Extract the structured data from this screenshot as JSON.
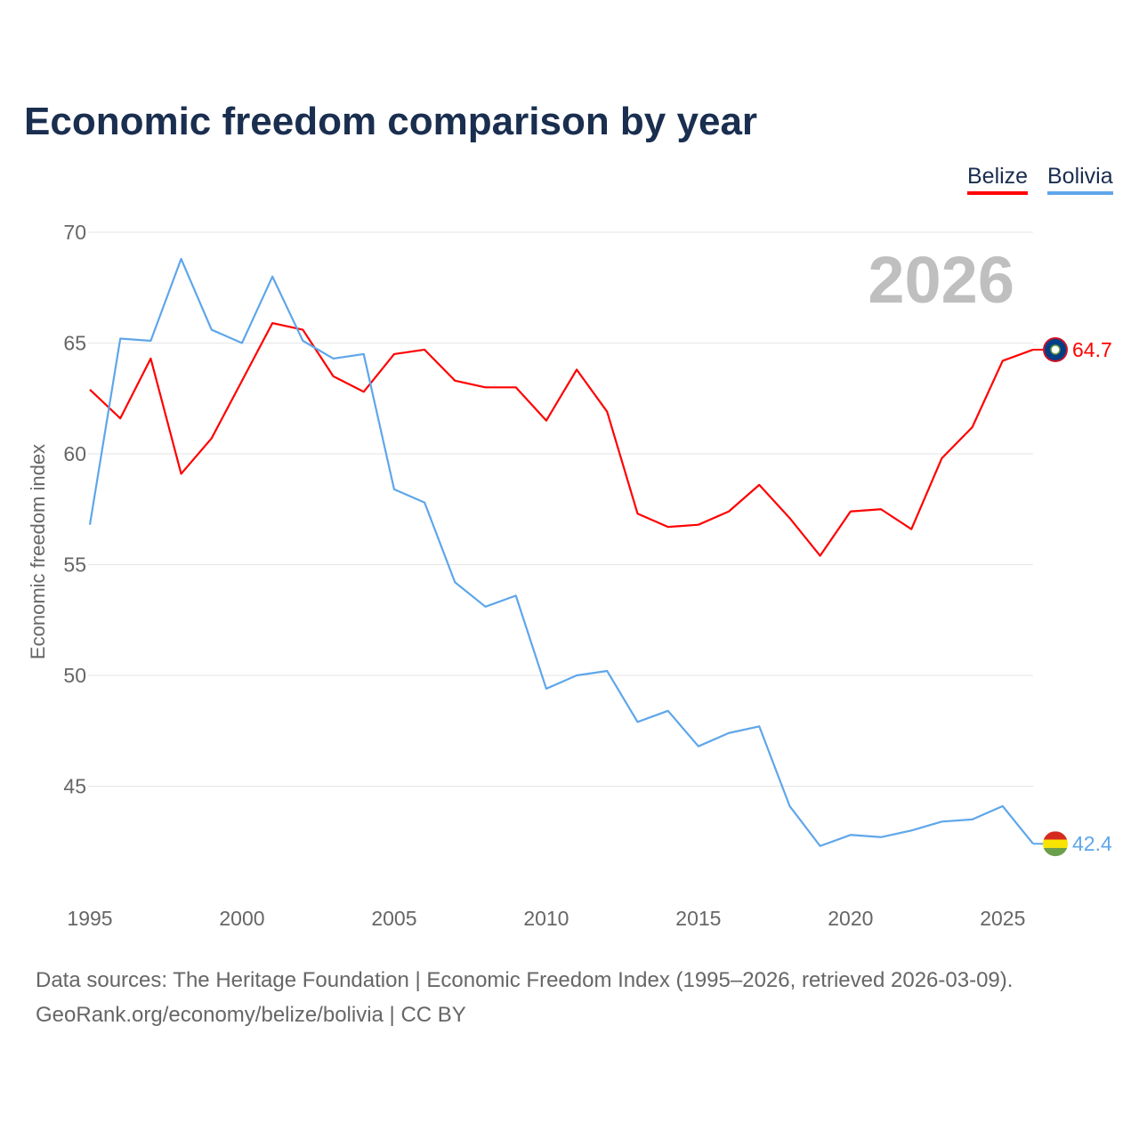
{
  "title": "Economic freedom comparison by year",
  "footer": {
    "line1": "Data sources: The Heritage Foundation | Economic Freedom Index (1995–2026, retrieved 2026-03-09).",
    "line2": "GeoRank.org/economy/belize/bolivia | CC BY"
  },
  "chart_data": {
    "type": "line",
    "title": "Economic freedom comparison by year",
    "xlabel": "",
    "ylabel": "Economic freedom index",
    "watermark_year": "2026",
    "xlim": [
      1995,
      2026
    ],
    "ylim": [
      41,
      70
    ],
    "x_ticks": [
      1995,
      2000,
      2005,
      2010,
      2015,
      2020,
      2025
    ],
    "y_ticks": [
      45,
      50,
      55,
      60,
      65,
      70
    ],
    "grid": true,
    "legend_position": "top-right",
    "x": [
      1995,
      1996,
      1997,
      1998,
      1999,
      2000,
      2001,
      2002,
      2003,
      2004,
      2005,
      2006,
      2007,
      2008,
      2009,
      2010,
      2011,
      2012,
      2013,
      2014,
      2015,
      2016,
      2017,
      2018,
      2019,
      2020,
      2021,
      2022,
      2023,
      2024,
      2025,
      2026
    ],
    "series": [
      {
        "name": "Belize",
        "color": "#ff0000",
        "end_label": "64.7",
        "values": [
          62.9,
          61.6,
          64.3,
          59.1,
          60.7,
          63.3,
          65.9,
          65.6,
          63.5,
          62.8,
          64.5,
          64.7,
          63.3,
          63.0,
          63.0,
          61.5,
          63.8,
          61.9,
          57.3,
          56.7,
          56.8,
          57.4,
          58.6,
          57.1,
          55.4,
          57.4,
          57.5,
          56.6,
          59.8,
          61.2,
          64.2,
          64.7
        ]
      },
      {
        "name": "Bolivia",
        "color": "#5ea6ea",
        "end_label": "42.4",
        "values": [
          56.8,
          65.2,
          65.1,
          68.8,
          65.6,
          65.0,
          68.0,
          65.1,
          64.3,
          64.5,
          58.4,
          57.8,
          54.2,
          53.1,
          53.6,
          49.4,
          50.0,
          50.2,
          47.9,
          48.4,
          46.8,
          47.4,
          47.7,
          44.1,
          42.3,
          42.8,
          42.7,
          43.0,
          43.4,
          43.5,
          44.1,
          42.4
        ]
      }
    ]
  }
}
